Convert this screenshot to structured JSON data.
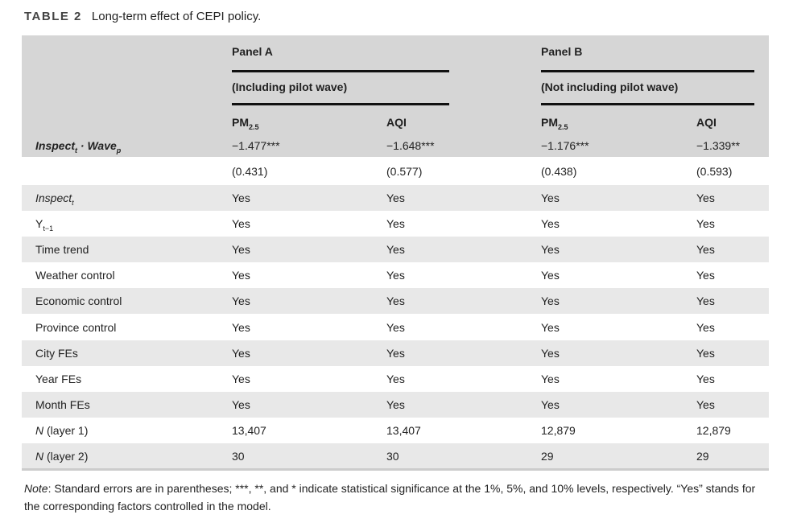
{
  "caption": {
    "label": "TABLE 2",
    "title": "Long-term effect of CEPI policy."
  },
  "header": {
    "panel_a": "Panel A",
    "panel_a_sub": "(Including pilot wave)",
    "panel_b": "Panel B",
    "panel_b_sub": "(Not including pilot wave)",
    "columns": [
      {
        "main": "PM",
        "sub": "2.5"
      },
      {
        "main": "AQI",
        "sub": ""
      },
      {
        "main": "PM",
        "sub": "2.5"
      },
      {
        "main": "AQI",
        "sub": ""
      }
    ]
  },
  "coef_row": {
    "label_main": "Inspect",
    "label_sub1": "t",
    "label_mid": " · Wave",
    "label_sub2": "p",
    "values": [
      "−1.477***",
      "−1.648***",
      "−1.176***",
      "−1.339**"
    ],
    "se": [
      "(0.431)",
      "(0.577)",
      "(0.438)",
      "(0.593)"
    ]
  },
  "rows": [
    {
      "label": "Inspect",
      "label_sub": "t",
      "italic": true,
      "values": [
        "Yes",
        "Yes",
        "Yes",
        "Yes"
      ]
    },
    {
      "label": "Y",
      "label_sub": "t−1",
      "values": [
        "Yes",
        "Yes",
        "Yes",
        "Yes"
      ]
    },
    {
      "label": "Time trend",
      "values": [
        "Yes",
        "Yes",
        "Yes",
        "Yes"
      ]
    },
    {
      "label": "Weather control",
      "values": [
        "Yes",
        "Yes",
        "Yes",
        "Yes"
      ]
    },
    {
      "label": "Economic control",
      "values": [
        "Yes",
        "Yes",
        "Yes",
        "Yes"
      ]
    },
    {
      "label": "Province control",
      "values": [
        "Yes",
        "Yes",
        "Yes",
        "Yes"
      ]
    },
    {
      "label": "City FEs",
      "values": [
        "Yes",
        "Yes",
        "Yes",
        "Yes"
      ]
    },
    {
      "label": "Year FEs",
      "values": [
        "Yes",
        "Yes",
        "Yes",
        "Yes"
      ]
    },
    {
      "label": "Month FEs",
      "values": [
        "Yes",
        "Yes",
        "Yes",
        "Yes"
      ]
    },
    {
      "label": "N",
      "label_rest": " (layer 1)",
      "values": [
        "13,407",
        "13,407",
        "12,879",
        "12,879"
      ]
    },
    {
      "label": "N",
      "label_rest": " (layer 2)",
      "values": [
        "30",
        "30",
        "29",
        "29"
      ]
    }
  ],
  "note": {
    "prefix": "Note",
    "text": ": Standard errors are in parentheses; ***, **, and * indicate statistical significance at the 1%, 5%, and 10% levels, respectively. “Yes” stands for the corresponding factors controlled in the model."
  }
}
